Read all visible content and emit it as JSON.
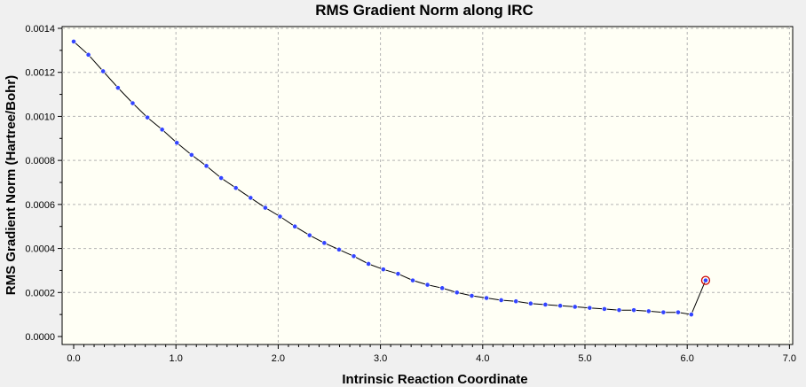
{
  "chart_data": {
    "type": "line",
    "title": "RMS Gradient Norm along IRC",
    "xlabel": "Intrinsic Reaction Coordinate",
    "ylabel": "RMS Gradient Norm (Hartree/Bohr)",
    "xlim": [
      0.0,
      7.0
    ],
    "ylim": [
      0.0,
      0.0014
    ],
    "x_ticks": [
      "0.0",
      "1.0",
      "2.0",
      "3.0",
      "4.0",
      "5.0",
      "6.0",
      "7.0"
    ],
    "y_ticks": [
      "0.0000",
      "0.0002",
      "0.0004",
      "0.0006",
      "0.0008",
      "0.0010",
      "0.0012",
      "0.0014"
    ],
    "grid": true,
    "series": [
      {
        "x": [
          0.0,
          0.144,
          0.288,
          0.433,
          0.577,
          0.721,
          0.865,
          1.009,
          1.153,
          1.298,
          1.442,
          1.586,
          1.73,
          1.874,
          2.018,
          2.163,
          2.307,
          2.451,
          2.595,
          2.739,
          2.883,
          3.028,
          3.172,
          3.316,
          3.46,
          3.604,
          3.748,
          3.893,
          4.037,
          4.181,
          4.325,
          4.469,
          4.613,
          4.758,
          4.902,
          5.046,
          5.19,
          5.334,
          5.478,
          5.623,
          5.767,
          5.911,
          6.04,
          6.18
        ],
        "values": [
          0.00134,
          0.00128,
          0.001205,
          0.00113,
          0.00106,
          0.000995,
          0.00094,
          0.00088,
          0.000825,
          0.000775,
          0.00072,
          0.000675,
          0.00063,
          0.000585,
          0.000545,
          0.0005,
          0.00046,
          0.000425,
          0.000395,
          0.000365,
          0.00033,
          0.000305,
          0.000285,
          0.000255,
          0.000235,
          0.00022,
          0.0002,
          0.000185,
          0.000175,
          0.000165,
          0.00016,
          0.00015,
          0.000145,
          0.00014,
          0.000135,
          0.00013,
          0.000125,
          0.00012,
          0.00012,
          0.000115,
          0.00011,
          0.00011,
          0.0001,
          0.000255
        ]
      }
    ],
    "highlighted_point_index": 43,
    "colors": {
      "plot_background": "#fffff5",
      "frame_background": "#f0f0f0",
      "line": "#000000",
      "marker": "#3344ff",
      "highlight": "#cc0000",
      "grid": "#b4b4b4"
    }
  }
}
